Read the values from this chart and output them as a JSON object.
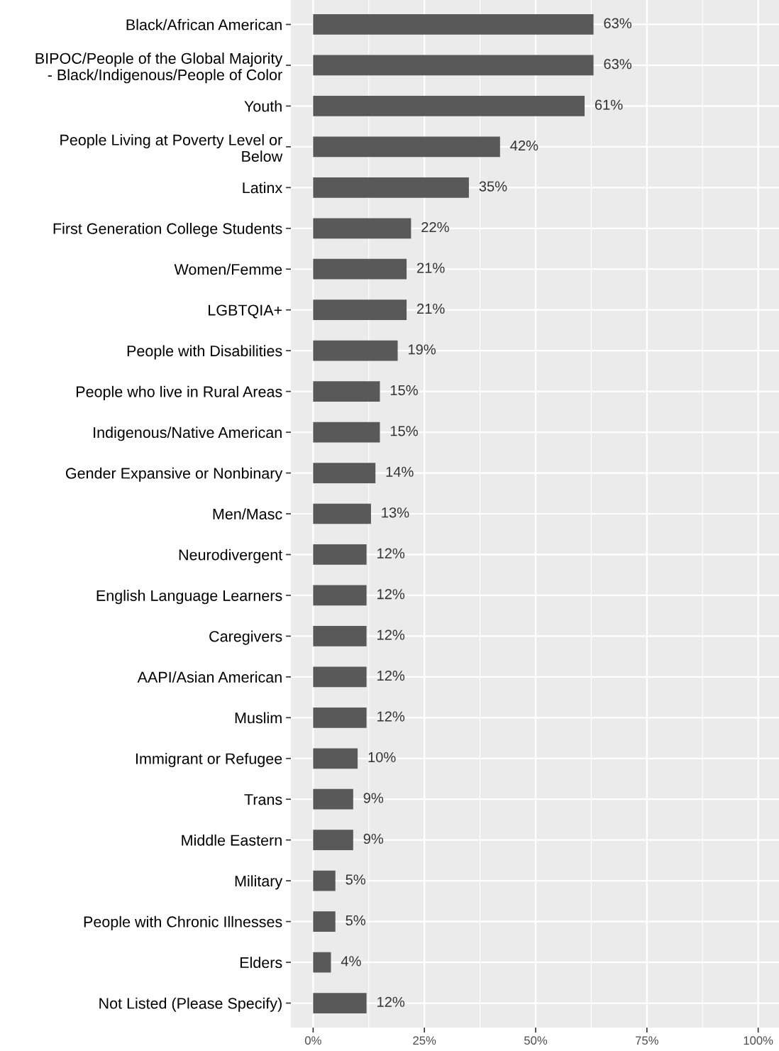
{
  "chart_data": {
    "type": "bar",
    "orientation": "horizontal",
    "categories": [
      "Black/African American",
      "BIPOC/People of the Global Majority\n- Black/Indigenous/People of Color",
      "Youth",
      "People Living at Poverty Level or\nBelow",
      "Latinx",
      "First Generation College Students",
      "Women/Femme",
      "LGBTQIA+",
      "People with Disabilities",
      "People who live in Rural Areas",
      "Indigenous/Native American",
      "Gender Expansive or Nonbinary",
      "Men/Masc",
      "Neurodivergent",
      "English Language Learners",
      "Caregivers",
      "AAPI/Asian American",
      "Muslim",
      "Immigrant or Refugee",
      "Trans",
      "Middle Eastern",
      "Military",
      "People with Chronic Illnesses",
      "Elders",
      "Not Listed (Please Specify)"
    ],
    "values": [
      63,
      63,
      61,
      42,
      35,
      22,
      21,
      21,
      19,
      15,
      15,
      14,
      13,
      12,
      12,
      12,
      12,
      12,
      10,
      9,
      9,
      5,
      5,
      4,
      12
    ],
    "color": "#595959",
    "value_labels": [
      "63%",
      "63%",
      "61%",
      "42%",
      "35%",
      "22%",
      "21%",
      "21%",
      "19%",
      "15%",
      "15%",
      "14%",
      "13%",
      "12%",
      "12%",
      "12%",
      "12%",
      "12%",
      "10%",
      "9%",
      "9%",
      "5%",
      "5%",
      "4%",
      "12%"
    ],
    "xlim": [
      -5,
      105
    ],
    "xticks": [
      {
        "value": 0,
        "label": "0%"
      },
      {
        "value": 25,
        "label": "25%"
      },
      {
        "value": 50,
        "label": "50%"
      },
      {
        "value": 75,
        "label": "75%"
      },
      {
        "value": 100,
        "label": "100%"
      }
    ],
    "grid": true,
    "legend": false
  }
}
